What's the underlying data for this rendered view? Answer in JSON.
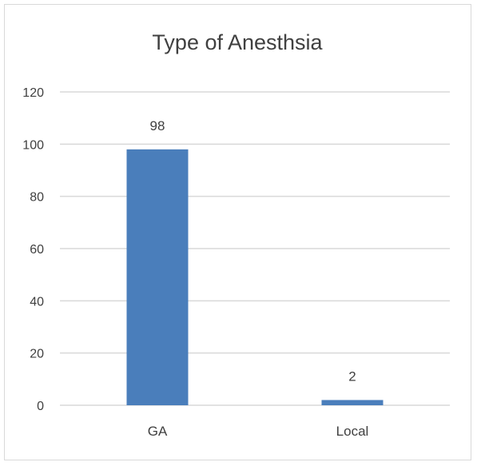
{
  "chart_data": {
    "type": "bar",
    "title": "Type of Anesthsia",
    "categories": [
      "GA",
      "Local"
    ],
    "values": [
      98,
      2
    ],
    "data_labels": [
      "98",
      "2"
    ],
    "xlabel": "",
    "ylabel": "",
    "ylim": [
      0,
      120
    ],
    "yticks": [
      "0",
      "20",
      "40",
      "60",
      "80",
      "100",
      "120"
    ],
    "grid": true,
    "legend": "none",
    "colors": {
      "bar": "#4a7ebb",
      "grid": "#d9d9d9",
      "text": "#404040"
    }
  }
}
